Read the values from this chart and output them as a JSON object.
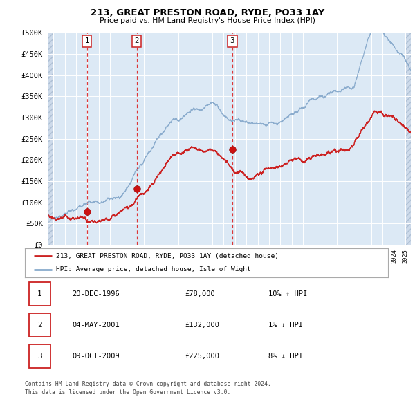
{
  "title1": "213, GREAT PRESTON ROAD, RYDE, PO33 1AY",
  "title2": "Price paid vs. HM Land Registry's House Price Index (HPI)",
  "legend1": "213, GREAT PRESTON ROAD, RYDE, PO33 1AY (detached house)",
  "legend2": "HPI: Average price, detached house, Isle of Wight",
  "footer1": "Contains HM Land Registry data © Crown copyright and database right 2024.",
  "footer2": "This data is licensed under the Open Government Licence v3.0.",
  "sale_years": [
    1996.96,
    2001.34,
    2009.77
  ],
  "sale_prices": [
    78000,
    132000,
    225000
  ],
  "table_rows": [
    [
      "1",
      "20-DEC-1996",
      "£78,000",
      "10% ↑ HPI"
    ],
    [
      "2",
      "04-MAY-2001",
      "£132,000",
      "1% ↓ HPI"
    ],
    [
      "3",
      "09-OCT-2009",
      "£225,000",
      "8% ↓ HPI"
    ]
  ],
  "vline_color": "#dd2222",
  "sale_dot_color": "#cc1111",
  "hpi_line_color": "#88aacc",
  "price_line_color": "#cc2222",
  "plot_bg": "#dce9f5",
  "grid_color": "#ffffff",
  "ylim": [
    0,
    500000
  ],
  "yticks": [
    0,
    50000,
    100000,
    150000,
    200000,
    250000,
    300000,
    350000,
    400000,
    450000,
    500000
  ],
  "xlim_start": 1993.5,
  "xlim_end": 2025.5,
  "hatch_left_end": 1994.0,
  "hatch_right_start": 2025.0
}
